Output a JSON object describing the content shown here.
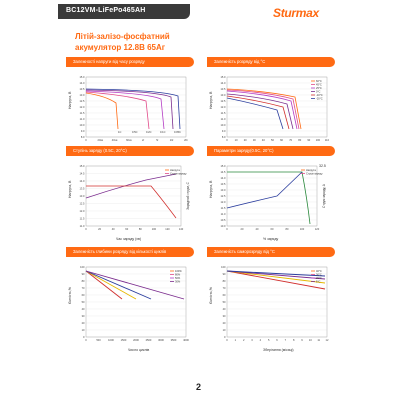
{
  "header": {
    "model": "BC12VM-LiFePo465AH",
    "logo": "Sturmax",
    "title_line1": "Літій-залізо-фосфатний",
    "title_line2": "акумулятор 12.8В 65Аг"
  },
  "page_number": "2",
  "charts": [
    {
      "banner": "Залежності напруги від часу розряду",
      "ylabel": "Напруга, В",
      "xlabel": "Час розряду",
      "yticks": [
        "15.0",
        "14.0",
        "13.5",
        "13.0",
        "12.5",
        "12.0",
        "11.5",
        "11.0",
        "10.0",
        "9.0",
        "8.0"
      ],
      "xticks": [
        "0",
        "20хв",
        "40хв",
        "60хв",
        "2г",
        "5г",
        "10г",
        "20г"
      ],
      "curve_labels": [
        "1C",
        "0.5C",
        "0.2C",
        "0.1C",
        "0.05C"
      ]
    },
    {
      "banner": "Залежність розряду від °С",
      "ylabel": "Напруга, В",
      "xlabel": "Ємність %",
      "yticks": [
        "15.0",
        "14.0",
        "13.5",
        "13.0",
        "12.5",
        "12.0",
        "11.5",
        "11.0",
        "10.0",
        "9.0",
        "8.0"
      ],
      "xticks": [
        "0",
        "10",
        "20",
        "30",
        "40",
        "50",
        "60",
        "70",
        "80",
        "90",
        "100",
        "110"
      ],
      "legend": [
        "60°C",
        "45°C",
        "25°C",
        "0°C",
        "-10°C",
        "-20°C"
      ]
    },
    {
      "banner": "Ступінь заряду (0.5C, 20°C)",
      "ylabel": "Напруга, В",
      "ylabel2": "Зарядний струм, С",
      "xlabel": "Час заряду (хв)",
      "yticks": [
        "15.0",
        "14.5",
        "14.0",
        "13.5",
        "13.0",
        "12.5",
        "12.0",
        "11.5",
        "11.0"
      ],
      "xticks": [
        "0",
        "20",
        "40",
        "60",
        "80",
        "100",
        "120",
        "140"
      ],
      "legend": [
        "Напруга",
        "Струм заряду"
      ]
    },
    {
      "banner": "Параметри заряду(0.5C, 20°C)",
      "ylabel": "Напруга, В",
      "ylabel2": "Струм заряду, А",
      "xlabel": "% заряду",
      "yticks": [
        "15.0",
        "14.5",
        "14.0",
        "13.5",
        "13.0",
        "12.5",
        "12.0",
        "11.5",
        "11.0",
        "10.5",
        "10.0"
      ],
      "xticks": [
        "0",
        "20",
        "40",
        "60",
        "80",
        "100",
        "120"
      ],
      "right_value": "32.5",
      "legend": [
        "Напруга",
        "Струм заряду"
      ]
    },
    {
      "banner": "Залежність глибини розряду від кількості циклів",
      "ylabel": "Ємність,%",
      "xlabel": "Число циклів",
      "yticks": [
        "100",
        "90",
        "80",
        "70",
        "60",
        "50",
        "40",
        "30",
        "20",
        "10",
        "0"
      ],
      "xticks": [
        "0",
        "500",
        "1000",
        "1500",
        "2000",
        "2500",
        "3000",
        "3500",
        "4000"
      ],
      "legend": [
        "100%",
        "80%",
        "50%",
        "30%"
      ]
    },
    {
      "banner": "Залежність саморозряду від °С",
      "ylabel": "Ємність,%",
      "xlabel": "Зберігання (місяці)",
      "yticks": [
        "100",
        "90",
        "80",
        "70",
        "60",
        "50",
        "40",
        "30",
        "20",
        "10",
        "0"
      ],
      "xticks": [
        "0",
        "1",
        "2",
        "3",
        "4",
        "5",
        "6",
        "7",
        "8",
        "9",
        "10",
        "11",
        "12"
      ],
      "legend": [
        "40°C",
        "30°C",
        "20°C",
        "5°C"
      ]
    }
  ],
  "colors": {
    "accent": "#ff6a13",
    "dark": "#3a3a3a",
    "series": [
      "#ff6a13",
      "#e14b8a",
      "#b43cc4",
      "#7b2d8e",
      "#d1302e",
      "#2c3e9e"
    ]
  }
}
